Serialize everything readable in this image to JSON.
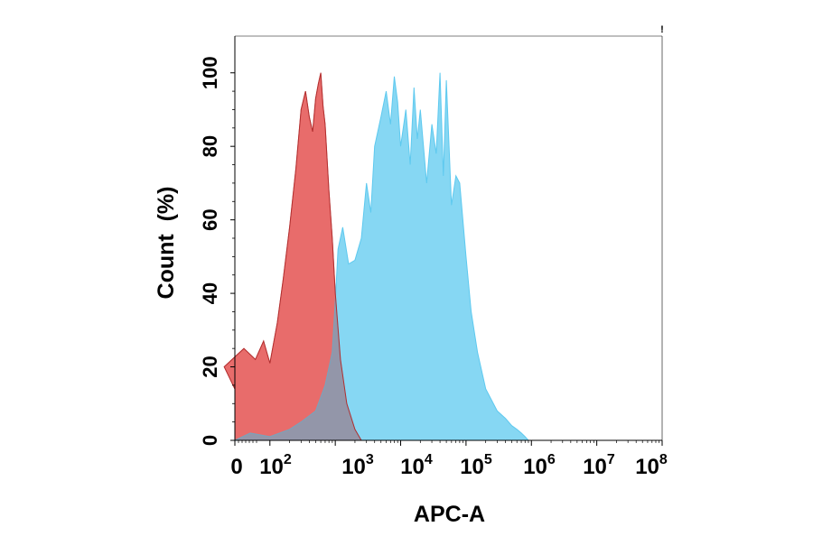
{
  "chart_data": {
    "type": "area",
    "title": "",
    "xlabel": "APC-A",
    "ylabel": "Count  (%)",
    "xscale": "log",
    "ylim": [
      0,
      110
    ],
    "y_ticks": [
      "0",
      "20",
      "40",
      "60",
      "80",
      "100"
    ],
    "x_ticks": [
      {
        "base": "0",
        "exp": ""
      },
      {
        "base": "10",
        "exp": "2"
      },
      {
        "base": "10",
        "exp": "3"
      },
      {
        "base": "10",
        "exp": "4"
      },
      {
        "base": "10",
        "exp": "5"
      },
      {
        "base": "10",
        "exp": "6"
      },
      {
        "base": "10",
        "exp": "7"
      },
      {
        "base": "10",
        "exp": "8"
      }
    ],
    "corner_mark": "!",
    "grid": false,
    "legend": "none",
    "series": [
      {
        "color": "#f4676b",
        "x": [
          0,
          20,
          40,
          60,
          80,
          100,
          130,
          160,
          200,
          250,
          300,
          350,
          400,
          450,
          500,
          550,
          600,
          650,
          700,
          800,
          900,
          1000,
          1200,
          1500,
          2000,
          2500
        ],
        "y": [
          14,
          20,
          25,
          22,
          27,
          21,
          32,
          44,
          58,
          74,
          90,
          95,
          88,
          84,
          93,
          97,
          100,
          91,
          86,
          68,
          55,
          40,
          22,
          10,
          3,
          0
        ]
      },
      {
        "color": "#5ec9ef",
        "x": [
          0,
          50,
          100,
          200,
          300,
          500,
          700,
          900,
          1000,
          1100,
          1300,
          1600,
          2000,
          2500,
          3000,
          3500,
          4000,
          5000,
          6000,
          7000,
          8000,
          9000,
          10000,
          12000,
          14000,
          16000,
          18000,
          20000,
          25000,
          30000,
          35000,
          40000,
          45000,
          50000,
          60000,
          70000,
          80000,
          100000,
          120000,
          150000,
          200000,
          300000,
          400000,
          500000,
          600000,
          700000,
          800000,
          900000
        ],
        "y": [
          0,
          2,
          1,
          3,
          5,
          8,
          15,
          24,
          38,
          52,
          58,
          48,
          49,
          55,
          70,
          62,
          80,
          88,
          95,
          86,
          99,
          92,
          80,
          90,
          75,
          96,
          82,
          90,
          70,
          86,
          78,
          100,
          72,
          98,
          64,
          72,
          70,
          50,
          35,
          24,
          14,
          8,
          6,
          4,
          3,
          2,
          1,
          0
        ]
      }
    ]
  }
}
